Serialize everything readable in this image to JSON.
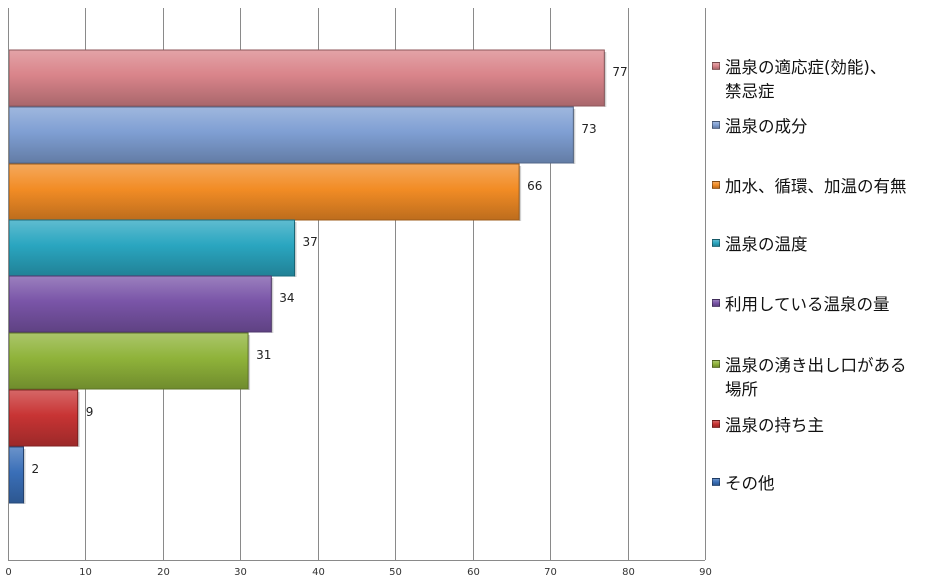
{
  "chart_data": {
    "type": "bar",
    "orientation": "horizontal",
    "categories": [
      "温泉の適応症(効能)、禁忌症",
      "温泉の成分",
      "加水、循環、加温の有無",
      "温泉の温度",
      "利用している温泉の量",
      "温泉の湧き出し口がある場所",
      "温泉の持ち主",
      "その他"
    ],
    "legend_lines": [
      [
        "温泉の適応症(効能)、",
        "禁忌症"
      ],
      [
        "温泉の成分"
      ],
      [
        "加水、循環、加温の有無"
      ],
      [
        "温泉の温度"
      ],
      [
        "利用している温泉の量"
      ],
      [
        "温泉の湧き出し口がある",
        "場所"
      ],
      [
        "温泉の持ち主"
      ],
      [
        "その他"
      ]
    ],
    "values": [
      77,
      73,
      66,
      37,
      34,
      31,
      9,
      2
    ],
    "value_labels": [
      "77",
      "73",
      "66",
      "37",
      "34",
      "31",
      "9",
      "2"
    ],
    "colors": [
      "#d9848a",
      "#7f9fd3",
      "#f28c25",
      "#2aa6c0",
      "#7a55a8",
      "#8fb33a",
      "#c83434",
      "#3a6fb8"
    ],
    "xlim": [
      0,
      90
    ],
    "xticks": [
      "0",
      "10",
      "20",
      "30",
      "40",
      "50",
      "60",
      "70",
      "80",
      "90"
    ],
    "grid": true,
    "legend_position": "right",
    "title": "",
    "xlabel": "",
    "ylabel": ""
  }
}
